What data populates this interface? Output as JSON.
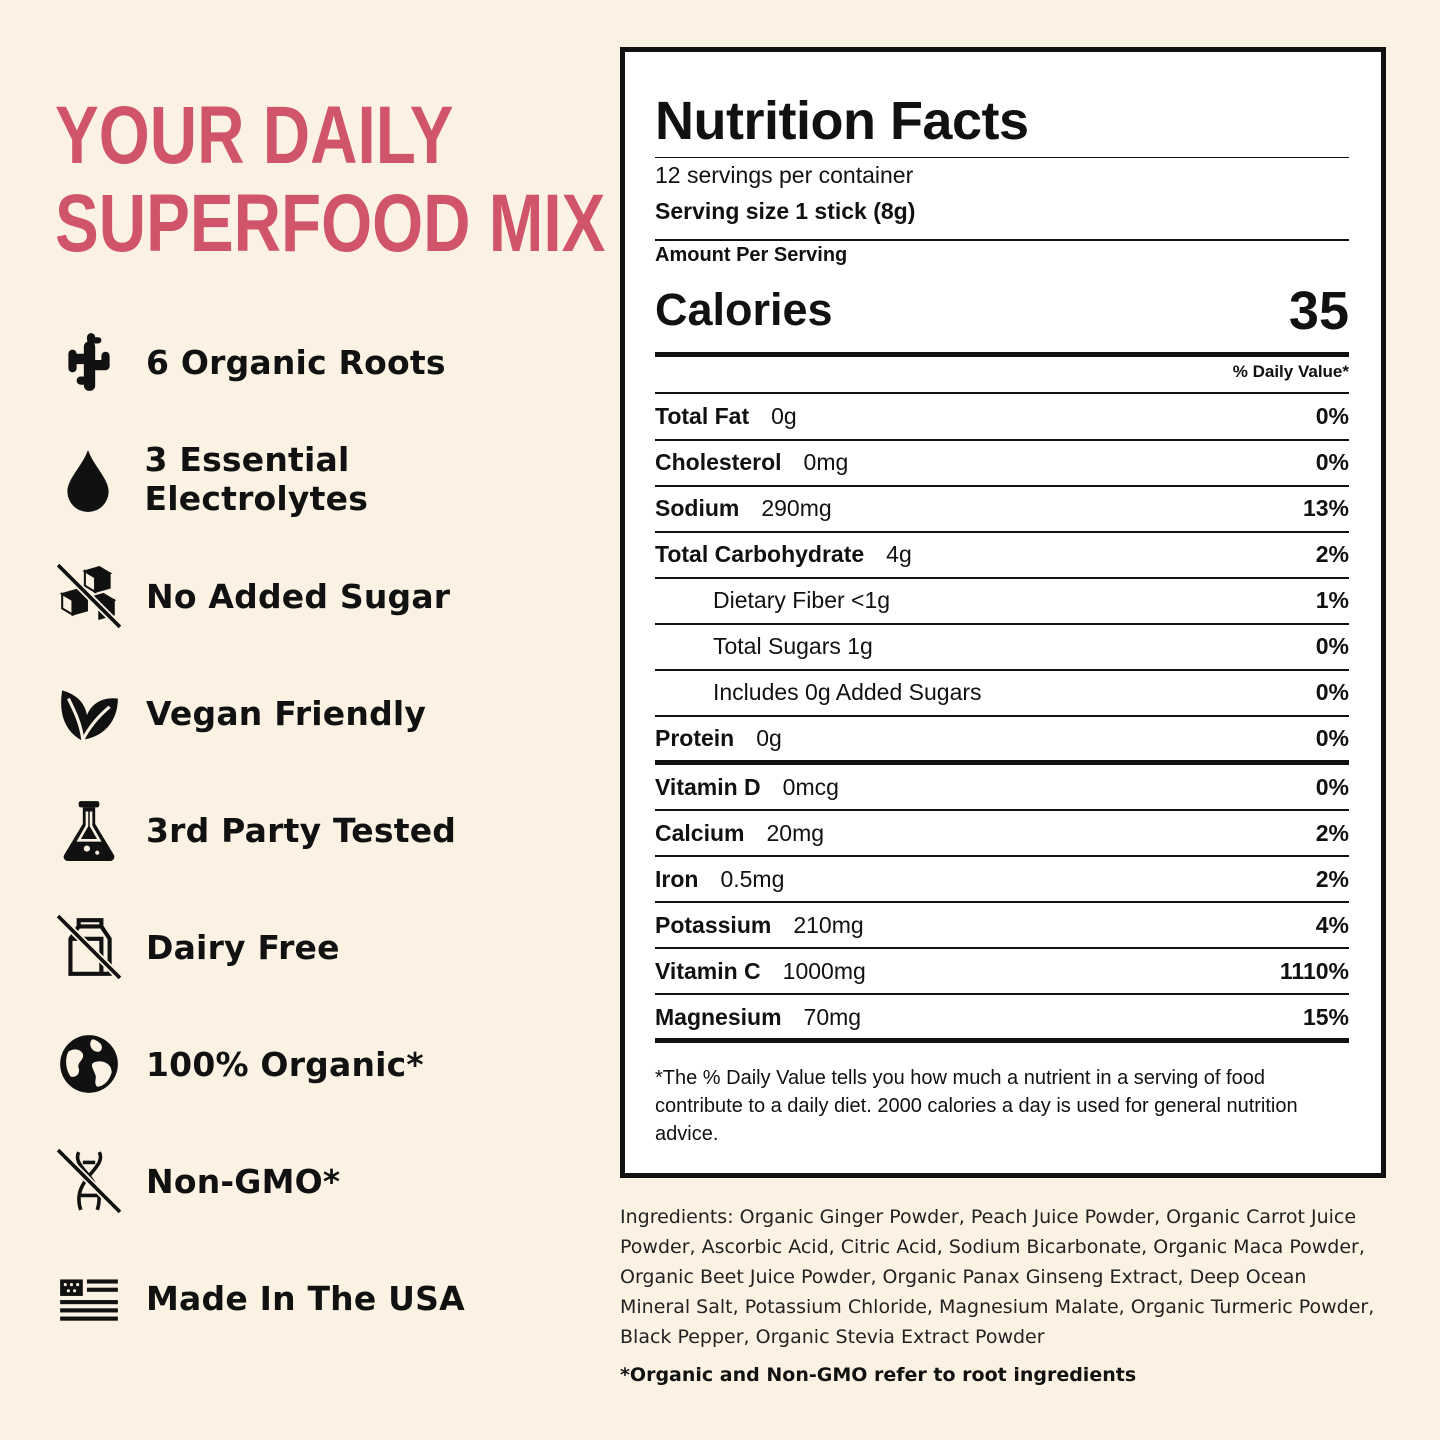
{
  "headline": {
    "line1": "YOUR DAILY",
    "line2": "SUPERFOOD MIX",
    "color": "#d0556b"
  },
  "features": [
    {
      "icon": "ginger-root-icon",
      "label": "6 Organic Roots"
    },
    {
      "icon": "water-drop-icon",
      "label": "3 Essential Electrolytes"
    },
    {
      "icon": "no-sugar-cubes-icon",
      "label": "No Added Sugar"
    },
    {
      "icon": "leaf-icon",
      "label": "Vegan Friendly"
    },
    {
      "icon": "flask-icon",
      "label": "3rd Party Tested"
    },
    {
      "icon": "no-milk-carton-icon",
      "label": "Dairy Free"
    },
    {
      "icon": "globe-icon",
      "label": "100% Organic*"
    },
    {
      "icon": "no-dna-icon",
      "label": "Non-GMO*"
    },
    {
      "icon": "usa-flag-icon",
      "label": "Made In The USA"
    }
  ],
  "nutrition": {
    "title": "Nutrition Facts",
    "servings": "12 servings per container",
    "serving_size_label": "Serving size",
    "serving_size_value": "1 stick (8g)",
    "amount_per_serving": "Amount Per Serving",
    "calories_label": "Calories",
    "calories_value": "35",
    "dv_header": "% Daily Value*",
    "rows": [
      {
        "name": "Total Fat",
        "amount": "0g",
        "dv": "0%"
      },
      {
        "name": "Cholesterol",
        "amount": "0mg",
        "dv": "0%"
      },
      {
        "name": "Sodium",
        "amount": "290mg",
        "dv": "13%"
      },
      {
        "name": "Total Carbohydrate",
        "amount": "4g",
        "dv": "2%"
      },
      {
        "name": "Dietary Fiber <1g",
        "amount": "",
        "dv": "1%"
      },
      {
        "name": "Total Sugars 1g",
        "amount": "",
        "dv": "0%"
      },
      {
        "name": "Includes 0g Added Sugars",
        "amount": "",
        "dv": "0%"
      },
      {
        "name": "Protein",
        "amount": "0g",
        "dv": "0%"
      }
    ],
    "vitamins": [
      {
        "name": "Vitamin D",
        "amount": "0mcg",
        "dv": "0%"
      },
      {
        "name": "Calcium",
        "amount": "20mg",
        "dv": "2%"
      },
      {
        "name": "Iron",
        "amount": "0.5mg",
        "dv": "2%"
      },
      {
        "name": "Potassium",
        "amount": "210mg",
        "dv": "4%"
      },
      {
        "name": "Vitamin C",
        "amount": "1000mg",
        "dv": "1110%"
      },
      {
        "name": "Magnesium",
        "amount": "70mg",
        "dv": "15%"
      }
    ],
    "footnote": "*The % Daily Value tells you how much a nutrient in a serving of food contribute to a daily diet. 2000 calories a day is used for general nutrition advice."
  },
  "ingredients": "Ingredients: Organic Ginger Powder, Peach Juice Powder, Organic Carrot Juice Powder, Ascorbic Acid, Citric Acid, Sodium Bicarbonate, Organic Maca Powder, Organic Beet Juice Powder, Organic Panax Ginseng Extract, Deep Ocean Mineral Salt, Potassium Chloride, Magnesium Malate, Organic Turmeric Powder, Black Pepper, Organic Stevia Extract Powder",
  "organic_note": "*Organic and Non-GMO refer to root ingredients"
}
